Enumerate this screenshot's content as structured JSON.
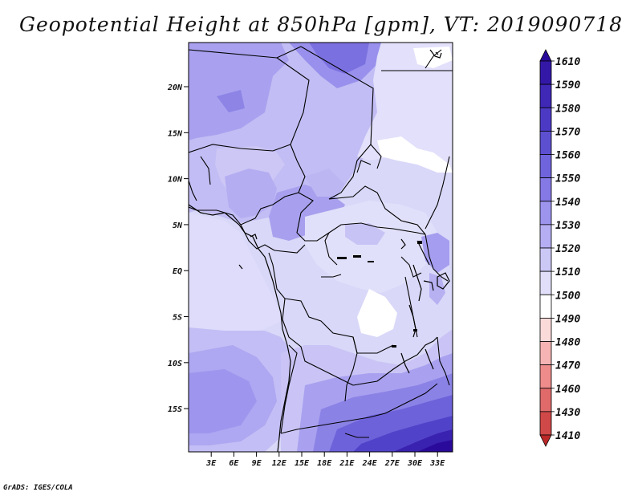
{
  "title": "Geopotential Height at 850hPa [gpm], VT: 2019090718",
  "credit": "GrADS: IGES/COLA",
  "map": {
    "region": "Central and Southern Africa",
    "lat_labels": [
      "20N",
      "15N",
      "10N",
      "5N",
      "EQ",
      "5S",
      "10S",
      "15S"
    ],
    "lat_values": [
      20,
      15,
      10,
      5,
      0,
      -5,
      -10,
      -15
    ],
    "lon_labels": [
      "3E",
      "6E",
      "9E",
      "12E",
      "15E",
      "18E",
      "21E",
      "24E",
      "27E",
      "30E",
      "33E"
    ],
    "lon_values": [
      3,
      6,
      9,
      12,
      15,
      18,
      21,
      24,
      27,
      30,
      33
    ],
    "lat_range": [
      -19.7,
      24.8
    ],
    "lon_range": [
      0,
      35
    ]
  },
  "colorbar": {
    "levels": [
      "1610",
      "1590",
      "1580",
      "1570",
      "1560",
      "1550",
      "1540",
      "1530",
      "1520",
      "1510",
      "1500",
      "1490",
      "1480",
      "1470",
      "1460",
      "1430",
      "1410"
    ],
    "colors": [
      "#2a0a9a",
      "#3318a8",
      "#3f28b6",
      "#4d3ac4",
      "#5d50d0",
      "#7064dc",
      "#8579e6",
      "#9d94ee",
      "#b5aef3",
      "#cbc8f6",
      "#e0def9",
      "#ffffff",
      "#fbdada",
      "#f6b3b3",
      "#ee8c8c",
      "#e06a6a",
      "#d04848",
      "#bb2828"
    ]
  }
}
